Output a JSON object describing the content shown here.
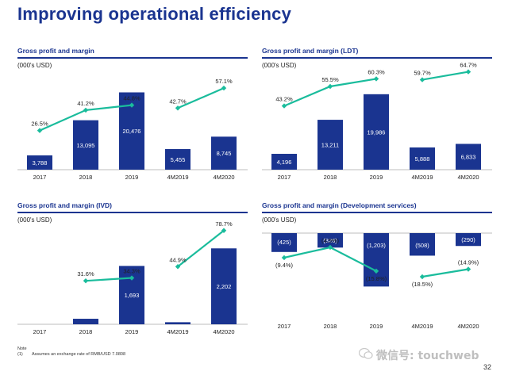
{
  "page_title": "Improving operational efficiency",
  "note": {
    "label": "Note",
    "num": "(1)",
    "text": "Assumes an exchange rate of RMB/USD 7.0808"
  },
  "page_number": "32",
  "watermark": "微信号: touchweb",
  "colors": {
    "bar": "#1a3490",
    "line": "#1abc9c",
    "title": "#1a3490"
  },
  "chart_data": [
    {
      "type": "bar+line",
      "title": "Gross profit and margin",
      "unit_label": "(000's USD)",
      "categories": [
        "2017",
        "2018",
        "2019",
        "4M2019",
        "4M2020"
      ],
      "bar_values": [
        3788,
        13095,
        20476,
        5455,
        8745
      ],
      "bar_labels": [
        "3,788",
        "13,095",
        "20,476",
        "5,455",
        "8,745"
      ],
      "line_values": [
        26.5,
        41.2,
        44.8,
        42.7,
        57.1
      ],
      "line_labels": [
        "26.5%",
        "41.2%",
        "44.8%",
        "42.7%",
        "57.1%"
      ],
      "line_segments": [
        [
          0,
          2
        ],
        [
          3,
          4
        ]
      ]
    },
    {
      "type": "bar+line",
      "title": "Gross profit and margin (LDT)",
      "unit_label": "(000's USD)",
      "categories": [
        "2017",
        "2018",
        "2019",
        "4M2019",
        "4M2020"
      ],
      "bar_values": [
        4196,
        13211,
        19986,
        5888,
        6833
      ],
      "bar_labels": [
        "4,196",
        "13,211",
        "19,986",
        "5,888",
        "6,833"
      ],
      "line_values": [
        43.2,
        55.5,
        60.3,
        59.7,
        64.7
      ],
      "line_labels": [
        "43.2%",
        "55.5%",
        "60.3%",
        "59.7%",
        "64.7%"
      ],
      "line_segments": [
        [
          0,
          2
        ],
        [
          3,
          4
        ]
      ]
    },
    {
      "type": "bar+line",
      "title": "Gross profit and margin (IVD)",
      "unit_label": "(000's USD)",
      "categories": [
        "2017",
        "2018",
        "2019",
        "4M2019",
        "4M2020"
      ],
      "bar_values": [
        0,
        160,
        1693,
        60,
        2202
      ],
      "bar_labels": [
        "",
        "",
        "1,693",
        "",
        "2,202"
      ],
      "line_values": [
        null,
        31.6,
        34.3,
        44.9,
        78.7
      ],
      "line_labels": [
        "",
        "31.6%",
        "34.3%",
        "44.9%",
        "78.7%"
      ],
      "line_segments": [
        [
          1,
          2
        ],
        [
          3,
          4
        ]
      ]
    },
    {
      "type": "bar+line",
      "title": "Gross profit and margin (Development services)",
      "unit_label": "(000's USD)",
      "categories": [
        "2017",
        "2018",
        "2019",
        "4M2019",
        "4M2020"
      ],
      "bar_values": [
        -425,
        -326,
        -1203,
        -508,
        -290
      ],
      "bar_labels": [
        "(425)",
        "(326)",
        "(1,203)",
        "(508)",
        "(290)"
      ],
      "line_values": [
        -9.4,
        -4.5,
        -15.8,
        -18.5,
        -14.9
      ],
      "line_labels": [
        "(9.4%)",
        "(4.5%)",
        "(15.8%)",
        "(18.5%)",
        "(14.9%)"
      ],
      "line_segments": [
        [
          0,
          2
        ],
        [
          3,
          4
        ]
      ]
    }
  ]
}
